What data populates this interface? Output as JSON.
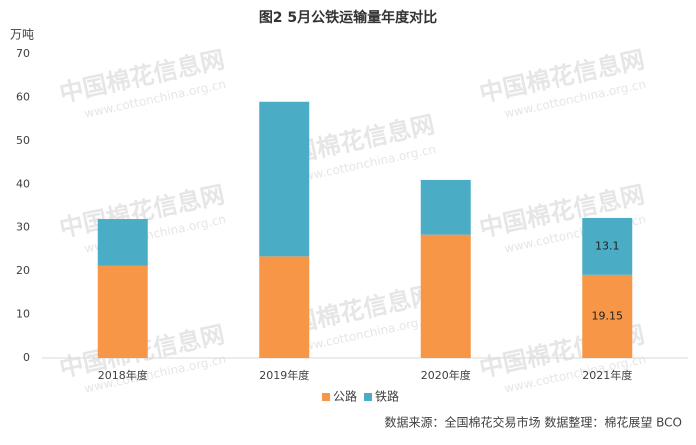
{
  "chart_data": {
    "type": "stacked_bar",
    "title": "图2 5月公铁运输量年度对比",
    "y_label": "万吨",
    "categories": [
      "2018年度",
      "2019年度",
      "2020年度",
      "2021年度"
    ],
    "series": [
      {
        "name": "公路",
        "color": "#f79646",
        "values": [
          21.3,
          23.4,
          28.4,
          19.15
        ]
      },
      {
        "name": "铁路",
        "color": "#4bacc6",
        "values": [
          10.7,
          35.6,
          12.6,
          13.1
        ]
      }
    ],
    "data_labels": [
      {
        "series": 0,
        "index": 3
      },
      {
        "series": 1,
        "index": 3
      }
    ],
    "ylim": [
      0,
      70
    ],
    "yticks": [
      0,
      10,
      20,
      30,
      40,
      50,
      60,
      70
    ],
    "grid": false,
    "legend": "bottom",
    "source": "数据来源：全国棉花交易市场  数据整理：棉花展望 BCO",
    "watermark": [
      "中国棉花信息网",
      "www.cottonchina.org.cn"
    ]
  }
}
